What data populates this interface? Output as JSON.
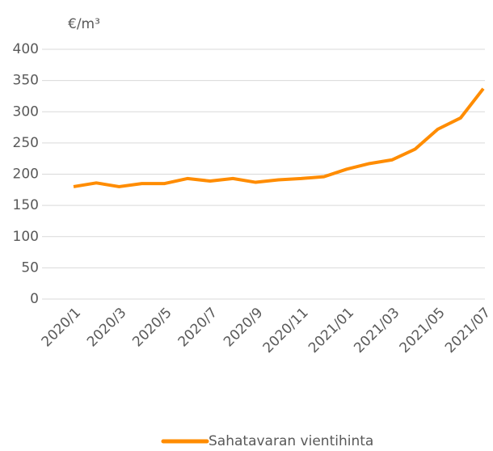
{
  "chart_data": {
    "type": "line",
    "y_label": "€/m³",
    "categories": [
      "2020/1",
      null,
      "2020/3",
      null,
      "2020/5",
      null,
      "2020/7",
      null,
      "2020/9",
      null,
      "2020/11",
      null,
      "2021/01",
      null,
      "2021/03",
      null,
      "2021/05",
      null,
      "2021/07"
    ],
    "series": [
      {
        "name": "Sahatavaran vientihinta",
        "color": "#ff8c00",
        "values": [
          180,
          186,
          180,
          185,
          185,
          193,
          189,
          193,
          187,
          191,
          193,
          196,
          208,
          217,
          223,
          240,
          272,
          290,
          337
        ]
      }
    ],
    "ylim": [
      0,
      400
    ],
    "yticks": [
      0,
      50,
      100,
      150,
      200,
      250,
      300,
      350,
      400
    ],
    "grid": true,
    "legend": "bottom"
  }
}
